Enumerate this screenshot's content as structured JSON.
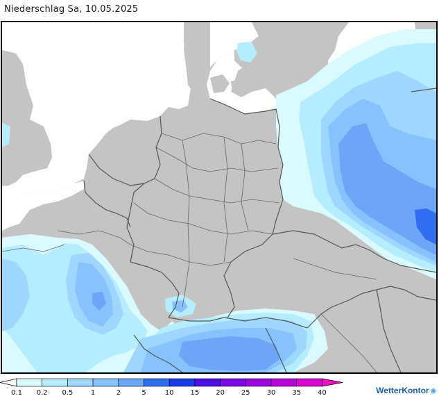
{
  "title": "Niederschlag Sa, 10.05.2025",
  "brand": "WetterKontor",
  "icons": {
    "brand_mark": "rain-drops-icon"
  },
  "colors": {
    "land": "#c4c4c4",
    "sea": "#ffffff",
    "border": "#555555",
    "frame": "#000000"
  },
  "legend": {
    "labels": [
      "0.1",
      "0.2",
      "0.5",
      "1",
      "2",
      "5",
      "10",
      "15",
      "20",
      "25",
      "30",
      "35",
      "40"
    ],
    "unit": "",
    "colors": [
      "#d9fbff",
      "#b6ecff",
      "#9fd6ff",
      "#86c2ff",
      "#6ea6f7",
      "#2f6ef0",
      "#1a3be8",
      "#4c10e6",
      "#7b0ae8",
      "#9b05e0",
      "#b906d8",
      "#d906cf",
      "#f00cc4"
    ]
  }
}
